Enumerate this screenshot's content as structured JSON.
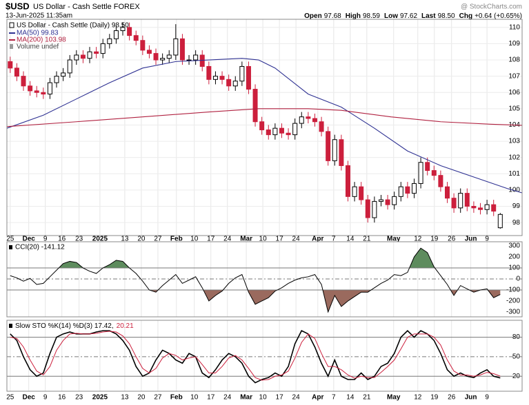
{
  "header": {
    "symbol": "$USD",
    "name": "US Dollar - Cash Settle FOREX",
    "date": "13-Jun-2025 11:35am",
    "quote": [
      {
        "label": "Open",
        "value": "97.68"
      },
      {
        "label": "High",
        "value": "98.59"
      },
      {
        "label": "Low",
        "value": "97.62"
      },
      {
        "label": "Last",
        "value": "98.50"
      },
      {
        "label": "Chg",
        "value": "+0.64 (+0.65%)"
      }
    ],
    "source": "@ StockCharts.com"
  },
  "chart_data": [
    {
      "type": "candlestick",
      "name": "US Dollar - Cash Settle (Daily) 98.50",
      "extra_legend": "Volume undef",
      "up_color": "#000000",
      "down_color": "#cc1f3c",
      "grid": true,
      "x": [
        0,
        2,
        4,
        6,
        8,
        10,
        12,
        14,
        16,
        18,
        20,
        22,
        24,
        26,
        28,
        30,
        32,
        34,
        36,
        38,
        40,
        42,
        44,
        46,
        48,
        50,
        52,
        54,
        56,
        58,
        60,
        62,
        64,
        66,
        68,
        70,
        72,
        74,
        76,
        78,
        80,
        82,
        84,
        86,
        88,
        90,
        92,
        94,
        96,
        98,
        100,
        102,
        104,
        106,
        108,
        110,
        112,
        114,
        116,
        118,
        120,
        122,
        124,
        126,
        128,
        130,
        132,
        134,
        136,
        138,
        140,
        142,
        144,
        146,
        148
      ],
      "open": [
        107.9,
        107.5,
        107.0,
        106.4,
        106.1,
        106.0,
        105.9,
        106.6,
        107.0,
        107.2,
        108.0,
        108.3,
        108.1,
        108.5,
        108.4,
        109.0,
        109.3,
        109.8,
        110.0,
        109.5,
        109.2,
        108.6,
        108.4,
        108.0,
        108.1,
        108.3,
        109.3,
        108.0,
        108.0,
        108.3,
        107.6,
        106.8,
        107.0,
        106.8,
        106.4,
        106.7,
        107.6,
        106.2,
        104.2,
        103.7,
        103.4,
        103.8,
        103.5,
        103.4,
        104.1,
        104.5,
        104.4,
        104.2,
        103.6,
        101.8,
        103.1,
        101.5,
        99.6,
        100.2,
        99.4,
        98.3,
        99.3,
        99.4,
        99.1,
        99.6,
        100.2,
        99.8,
        100.4,
        101.7,
        101.2,
        100.9,
        100.2,
        99.5,
        98.9,
        99.8,
        99.0,
        98.9,
        98.8,
        99.1,
        97.68
      ],
      "high": [
        108.2,
        107.8,
        107.3,
        106.7,
        106.4,
        106.3,
        106.9,
        107.3,
        107.5,
        108.3,
        108.6,
        108.6,
        108.8,
        108.8,
        109.3,
        109.6,
        110.1,
        110.3,
        110.3,
        109.8,
        109.5,
        108.9,
        108.7,
        108.4,
        108.6,
        110.2,
        109.6,
        108.3,
        108.6,
        108.6,
        107.9,
        107.3,
        107.3,
        107.1,
        107.0,
        107.9,
        107.9,
        106.5,
        104.5,
        104.0,
        104.1,
        104.1,
        103.8,
        104.4,
        104.8,
        104.8,
        104.7,
        104.5,
        103.9,
        103.4,
        103.4,
        101.8,
        100.5,
        100.5,
        99.7,
        99.6,
        99.7,
        99.7,
        99.9,
        100.5,
        100.5,
        100.7,
        102.0,
        102.0,
        101.5,
        101.2,
        100.5,
        99.8,
        100.1,
        100.1,
        99.3,
        99.2,
        99.4,
        99.4,
        98.59
      ],
      "low": [
        107.2,
        106.7,
        106.1,
        105.8,
        105.7,
        105.6,
        105.6,
        106.3,
        106.7,
        106.9,
        107.7,
        107.8,
        107.8,
        108.1,
        108.1,
        108.7,
        109.0,
        109.5,
        109.2,
        108.9,
        108.3,
        108.1,
        107.7,
        107.7,
        107.8,
        108.0,
        107.7,
        107.7,
        107.7,
        107.3,
        106.5,
        106.5,
        106.5,
        106.1,
        106.1,
        106.4,
        105.9,
        103.9,
        103.4,
        103.1,
        103.1,
        103.2,
        103.1,
        103.1,
        103.8,
        104.1,
        103.9,
        103.3,
        101.5,
        101.5,
        101.2,
        99.3,
        99.3,
        99.1,
        98.0,
        98.0,
        99.0,
        98.8,
        98.8,
        99.3,
        99.5,
        99.5,
        100.1,
        100.9,
        100.6,
        99.9,
        99.2,
        98.6,
        98.6,
        98.7,
        98.6,
        98.5,
        98.5,
        98.4,
        97.62
      ],
      "close": [
        107.5,
        107.0,
        106.4,
        106.1,
        106.0,
        105.9,
        106.6,
        107.0,
        107.2,
        108.0,
        108.3,
        108.1,
        108.5,
        108.4,
        109.0,
        109.3,
        109.8,
        110.0,
        109.5,
        109.2,
        108.6,
        108.4,
        108.0,
        108.1,
        108.3,
        109.3,
        108.0,
        108.0,
        108.3,
        107.6,
        106.8,
        107.0,
        106.8,
        106.4,
        106.7,
        107.6,
        106.2,
        104.2,
        103.7,
        103.4,
        103.8,
        103.5,
        103.4,
        104.1,
        104.5,
        104.4,
        104.2,
        103.6,
        101.8,
        103.1,
        101.5,
        99.6,
        100.2,
        99.4,
        98.3,
        99.3,
        99.4,
        99.1,
        99.6,
        100.2,
        99.8,
        100.4,
        101.7,
        101.2,
        100.9,
        100.2,
        99.5,
        98.9,
        99.8,
        99.0,
        98.9,
        98.8,
        99.1,
        98.7,
        98.5
      ],
      "overlays": [
        {
          "name": "MA(50) 99.83",
          "color": "#2e3192",
          "x": [
            -1,
            10,
            20,
            30,
            40,
            50,
            60,
            70,
            75,
            80,
            90,
            100,
            110,
            120,
            130,
            140,
            150,
            154.5
          ],
          "values": [
            103.8,
            104.6,
            105.6,
            106.6,
            107.5,
            107.9,
            108.0,
            108.1,
            108.0,
            107.5,
            105.9,
            105.1,
            103.8,
            102.4,
            101.5,
            100.8,
            100.1,
            99.83
          ]
        },
        {
          "name": "MA(200) 103.98",
          "color": "#b0203f",
          "x": [
            -1,
            20,
            40,
            60,
            75,
            90,
            100,
            115,
            130,
            145,
            154.5
          ],
          "values": [
            103.9,
            104.2,
            104.5,
            104.8,
            105.0,
            105.0,
            104.9,
            104.5,
            104.2,
            104.05,
            103.98
          ]
        }
      ],
      "xlim": [
        -1,
        154.6
      ],
      "ylim": [
        97.2,
        110.5
      ],
      "yticks": [
        98,
        99,
        100,
        101,
        102,
        103,
        104,
        105,
        106,
        107,
        108,
        109,
        110
      ],
      "xticks": [
        {
          "value": 0,
          "label": "25"
        },
        {
          "value": 5.6,
          "label": "Dec",
          "major": true
        },
        {
          "value": 10.6,
          "label": "9"
        },
        {
          "value": 15.6,
          "label": "16"
        },
        {
          "value": 20.8,
          "label": "23"
        },
        {
          "value": 27.1,
          "label": "2025",
          "major": true
        },
        {
          "value": 34.6,
          "label": "13"
        },
        {
          "value": 39.6,
          "label": "20"
        },
        {
          "value": 44.6,
          "label": "27"
        },
        {
          "value": 50.2,
          "label": "Feb",
          "major": true
        },
        {
          "value": 55.6,
          "label": "10"
        },
        {
          "value": 60.6,
          "label": "17"
        },
        {
          "value": 65.6,
          "label": "24"
        },
        {
          "value": 71.3,
          "label": "Mar",
          "major": true
        },
        {
          "value": 76.3,
          "label": "10"
        },
        {
          "value": 81.3,
          "label": "17"
        },
        {
          "value": 86.3,
          "label": "24"
        },
        {
          "value": 92.9,
          "label": "Apr",
          "major": true
        },
        {
          "value": 97.7,
          "label": "7"
        },
        {
          "value": 102.7,
          "label": "14"
        },
        {
          "value": 107.7,
          "label": "21"
        },
        {
          "value": 115.8,
          "label": "May",
          "major": true
        },
        {
          "value": 123.1,
          "label": "12"
        },
        {
          "value": 128.1,
          "label": "19"
        },
        {
          "value": 133.3,
          "label": "26"
        },
        {
          "value": 139.1,
          "label": "Jun",
          "major": true
        },
        {
          "value": 144,
          "label": "9"
        }
      ]
    },
    {
      "type": "line",
      "name": "CCI(20) -141.12",
      "color": "#000000",
      "values": [
        30,
        10,
        -20,
        5,
        -50,
        -40,
        20,
        80,
        140,
        160,
        150,
        100,
        70,
        50,
        100,
        130,
        170,
        160,
        100,
        50,
        -20,
        -100,
        -120,
        -60,
        -10,
        40,
        -40,
        -10,
        20,
        -80,
        -200,
        -150,
        -110,
        -40,
        10,
        40,
        -120,
        -230,
        -200,
        -170,
        -110,
        -80,
        -40,
        -10,
        10,
        20,
        40,
        -50,
        -300,
        -150,
        -250,
        -200,
        -160,
        -120,
        -120,
        -80,
        -40,
        -10,
        40,
        30,
        60,
        200,
        280,
        240,
        110,
        30,
        -50,
        -150,
        -60,
        -90,
        -120,
        -100,
        -90,
        -170,
        -141.12
      ],
      "ylim": [
        -344,
        338
      ],
      "yticks": [
        300,
        200,
        100,
        0,
        -100,
        -200,
        -300
      ],
      "fill_above": {
        "value": 100,
        "color": "#5e8c5e"
      },
      "fill_below": {
        "value": -100,
        "color": "#9a6a5e"
      },
      "center_line": 0
    },
    {
      "type": "line",
      "legend": [
        {
          "text": "Slow STO %K(14) %D(3) 17.42,",
          "color": "#000000"
        },
        {
          "text": "20.21",
          "color": "#cc1f3c"
        }
      ],
      "series": [
        {
          "color": "#000000",
          "values": [
            85,
            75,
            50,
            30,
            20,
            25,
            55,
            80,
            85,
            88,
            85,
            85,
            85,
            88,
            90,
            90,
            85,
            75,
            60,
            35,
            20,
            25,
            45,
            60,
            55,
            45,
            40,
            55,
            50,
            25,
            18,
            30,
            45,
            55,
            50,
            40,
            20,
            10,
            15,
            18,
            25,
            20,
            35,
            70,
            90,
            85,
            65,
            40,
            20,
            45,
            20,
            15,
            15,
            25,
            15,
            20,
            35,
            40,
            55,
            80,
            90,
            80,
            90,
            85,
            75,
            55,
            30,
            20,
            25,
            20,
            18,
            25,
            30,
            20,
            17.42
          ]
        },
        {
          "color": "#cc1f3c",
          "values": [
            80,
            78,
            65,
            45,
            28,
            22,
            35,
            60,
            75,
            85,
            86,
            85,
            85,
            86,
            88,
            89,
            88,
            82,
            70,
            50,
            32,
            25,
            32,
            48,
            55,
            52,
            45,
            48,
            50,
            38,
            25,
            25,
            35,
            48,
            52,
            45,
            32,
            18,
            14,
            15,
            20,
            22,
            28,
            48,
            72,
            85,
            78,
            55,
            35,
            35,
            30,
            22,
            17,
            20,
            18,
            18,
            26,
            35,
            45,
            62,
            80,
            85,
            85,
            85,
            80,
            68,
            45,
            28,
            22,
            22,
            20,
            22,
            26,
            24,
            20.21
          ]
        }
      ],
      "ylim": [
        -3,
        106
      ],
      "yticks": [
        20,
        50,
        80
      ],
      "solid_lines": [
        20,
        80
      ],
      "dashed_line": 50,
      "xticks": [
        {
          "value": 0,
          "label": "25"
        },
        {
          "value": 5.6,
          "label": "Dec",
          "major": true
        },
        {
          "value": 10.6,
          "label": "9"
        },
        {
          "value": 15.6,
          "label": "16"
        },
        {
          "value": 20.8,
          "label": "23"
        },
        {
          "value": 27.1,
          "label": "2025",
          "major": true
        },
        {
          "value": 34.6,
          "label": "13"
        },
        {
          "value": 39.6,
          "label": "20"
        },
        {
          "value": 44.6,
          "label": "27"
        },
        {
          "value": 50.2,
          "label": "Feb",
          "major": true
        },
        {
          "value": 55.6,
          "label": "10"
        },
        {
          "value": 60.6,
          "label": "17"
        },
        {
          "value": 65.6,
          "label": "24"
        },
        {
          "value": 71.3,
          "label": "Mar",
          "major": true
        },
        {
          "value": 76.3,
          "label": "10"
        },
        {
          "value": 81.3,
          "label": "17"
        },
        {
          "value": 86.3,
          "label": "24"
        },
        {
          "value": 92.9,
          "label": "Apr",
          "major": true
        },
        {
          "value": 97.7,
          "label": "7"
        },
        {
          "value": 102.7,
          "label": "14"
        },
        {
          "value": 107.7,
          "label": "21"
        },
        {
          "value": 115.8,
          "label": "May",
          "major": true
        },
        {
          "value": 123.1,
          "label": "12"
        },
        {
          "value": 128.1,
          "label": "19"
        },
        {
          "value": 133.3,
          "label": "26"
        },
        {
          "value": 139.1,
          "label": "Jun",
          "major": true
        },
        {
          "value": 144,
          "label": "9"
        }
      ]
    }
  ]
}
